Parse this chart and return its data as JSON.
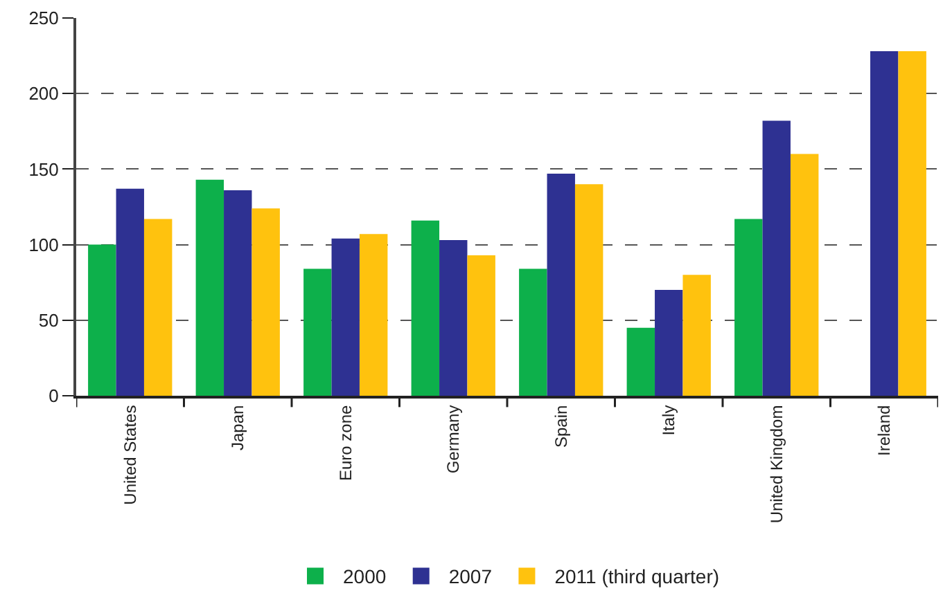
{
  "chart_data": {
    "type": "bar",
    "categories": [
      "United States",
      "Japan",
      "Euro zone",
      "Germany",
      "Spain",
      "Italy",
      "United Kingdom",
      "Ireland"
    ],
    "series": [
      {
        "name": "2000",
        "color": "#0db04b",
        "values": [
          100,
          143,
          84,
          116,
          84,
          45,
          117,
          null
        ]
      },
      {
        "name": "2007",
        "color": "#2e3192",
        "values": [
          137,
          136,
          104,
          103,
          147,
          70,
          182,
          228
        ]
      },
      {
        "name": "2011 (third quarter)",
        "color": "#ffc20e",
        "values": [
          117,
          124,
          107,
          93,
          140,
          80,
          160,
          228
        ]
      }
    ],
    "ylim": [
      0,
      250
    ],
    "yticks": [
      0,
      50,
      100,
      150,
      200,
      250
    ],
    "grid": "y",
    "legend": "bottom"
  }
}
